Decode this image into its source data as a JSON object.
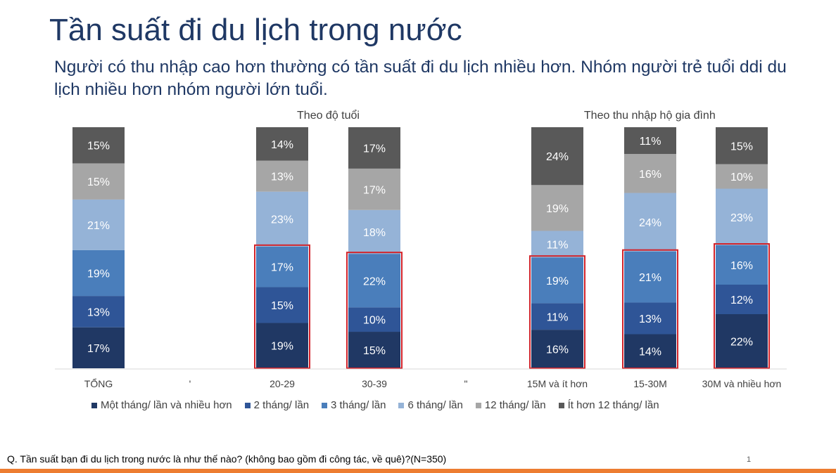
{
  "slide": {
    "title": "Tần suất đi du lịch trong nước",
    "subtitle": "Người có thu nhập cao hơn thường có tần suất đi du lịch nhiều hơn. Nhóm người trẻ tuổi ddi du lịch nhiều hơn nhóm người lớn tuổi.",
    "footnote": "Q. Tần suất bạn đi du lịch trong nước là như thế nào? (không bao gồm đi công tác, về quê)?(N=350)",
    "page_number": "1",
    "accent_color": "#ed7d31",
    "title_color": "#1f3864",
    "highlight_color": "#d2232a"
  },
  "chart_data": {
    "type": "bar",
    "stacked": true,
    "value_format": "percent",
    "categories": [
      "TỔNG",
      "'",
      "20-29",
      "30-39",
      "\"",
      "15M và ít hơn",
      "15-30M",
      "30M và  nhiều hơn"
    ],
    "group_labels": [
      {
        "label": "Theo độ tuổi",
        "categories": [
          "20-29",
          "30-39"
        ]
      },
      {
        "label": "Theo thu nhập hộ gia đình",
        "categories": [
          "15M và ít hơn",
          "15-30M",
          "30M và  nhiều hơn"
        ]
      }
    ],
    "series": [
      {
        "name": "Một tháng/ lần và nhiều hơn",
        "color": "#203864",
        "values": [
          17,
          null,
          19,
          15,
          null,
          16,
          14,
          22
        ]
      },
      {
        "name": "2 tháng/ lần",
        "color": "#2f5597",
        "values": [
          13,
          null,
          15,
          10,
          null,
          11,
          13,
          12
        ]
      },
      {
        "name": "3 tháng/ lần",
        "color": "#4a7ebb",
        "values": [
          19,
          null,
          17,
          22,
          null,
          19,
          21,
          16
        ]
      },
      {
        "name": "6 tháng/ lần",
        "color": "#95b3d7",
        "values": [
          21,
          null,
          23,
          18,
          null,
          11,
          24,
          23
        ]
      },
      {
        "name": "12 tháng/ lần",
        "color": "#a6a6a6",
        "values": [
          15,
          null,
          13,
          17,
          null,
          19,
          16,
          10
        ]
      },
      {
        "name": "Ít hơn 12 tháng/ lần",
        "color": "#595959",
        "values": [
          15,
          null,
          14,
          17,
          null,
          24,
          11,
          15
        ]
      }
    ],
    "highlighted_series": [
      "Một tháng/ lần và nhiều hơn",
      "2 tháng/ lần",
      "3 tháng/ lần"
    ],
    "highlighted_categories": [
      "20-29",
      "30-39",
      "15M và ít hơn",
      "15-30M",
      "30M và  nhiều hơn"
    ],
    "legend_position": "bottom",
    "grid": false
  }
}
